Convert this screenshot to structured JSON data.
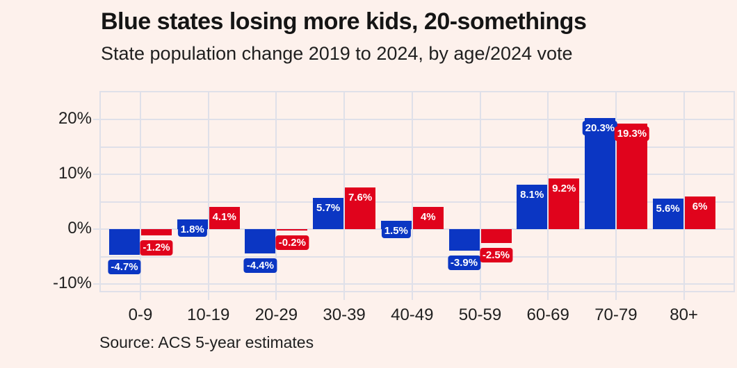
{
  "header": {
    "title": "Blue states losing more kids, 20-somethings",
    "subtitle": "State population change 2019 to 2024, by age/2024 vote"
  },
  "source_note": "Source: ACS 5-year estimates",
  "colors": {
    "background": "#fdf1ec",
    "gridline": "#dfe0e9",
    "blue_series": "#0b36c3",
    "red_series": "#e0031c",
    "title_text": "#151515",
    "body_text": "#1f1f1f",
    "bar_label_text": "#ffffff"
  },
  "chart_data": {
    "type": "bar",
    "title": "Blue states losing more kids, 20-somethings",
    "subtitle": "State population change 2019 to 2024, by age/2024 vote",
    "source": "Source: ACS 5-year estimates",
    "xlabel": "",
    "ylabel": "",
    "legend": "none",
    "grid": true,
    "categories": [
      "0-9",
      "10-19",
      "20-29",
      "30-39",
      "40-49",
      "50-59",
      "60-69",
      "70-79",
      "80+"
    ],
    "series": [
      {
        "name": "blue-states",
        "color": "#0b36c3",
        "values": [
          -4.7,
          1.8,
          -4.4,
          5.7,
          1.5,
          -3.9,
          8.1,
          20.3,
          5.6
        ],
        "labels": [
          "-4.7%",
          "1.8%",
          "-4.4%",
          "5.7%",
          "1.5%",
          "-3.9%",
          "8.1%",
          "20.3%",
          "5.6%"
        ]
      },
      {
        "name": "red-states",
        "color": "#e0031c",
        "values": [
          -1.2,
          4.1,
          -0.2,
          7.6,
          4,
          -2.5,
          9.2,
          19.3,
          6
        ],
        "labels": [
          "-1.2%",
          "4.1%",
          "-0.2%",
          "7.6%",
          "4%",
          "-2.5%",
          "9.2%",
          "19.3%",
          "6%"
        ]
      }
    ],
    "y_axis": {
      "ticks": [
        {
          "value": 20,
          "label": "20%"
        },
        {
          "value": 10,
          "label": "10%"
        },
        {
          "value": 0,
          "label": "0%"
        },
        {
          "value": -10,
          "label": "-10%"
        }
      ],
      "gridline_values": [
        20,
        15,
        10,
        5,
        0,
        -5,
        -10
      ],
      "ylim": [
        -11.7,
        25.2
      ]
    },
    "value_label_style": "white bold text in boxes colored like the bars; inside top of positive bars, below negative bars"
  }
}
